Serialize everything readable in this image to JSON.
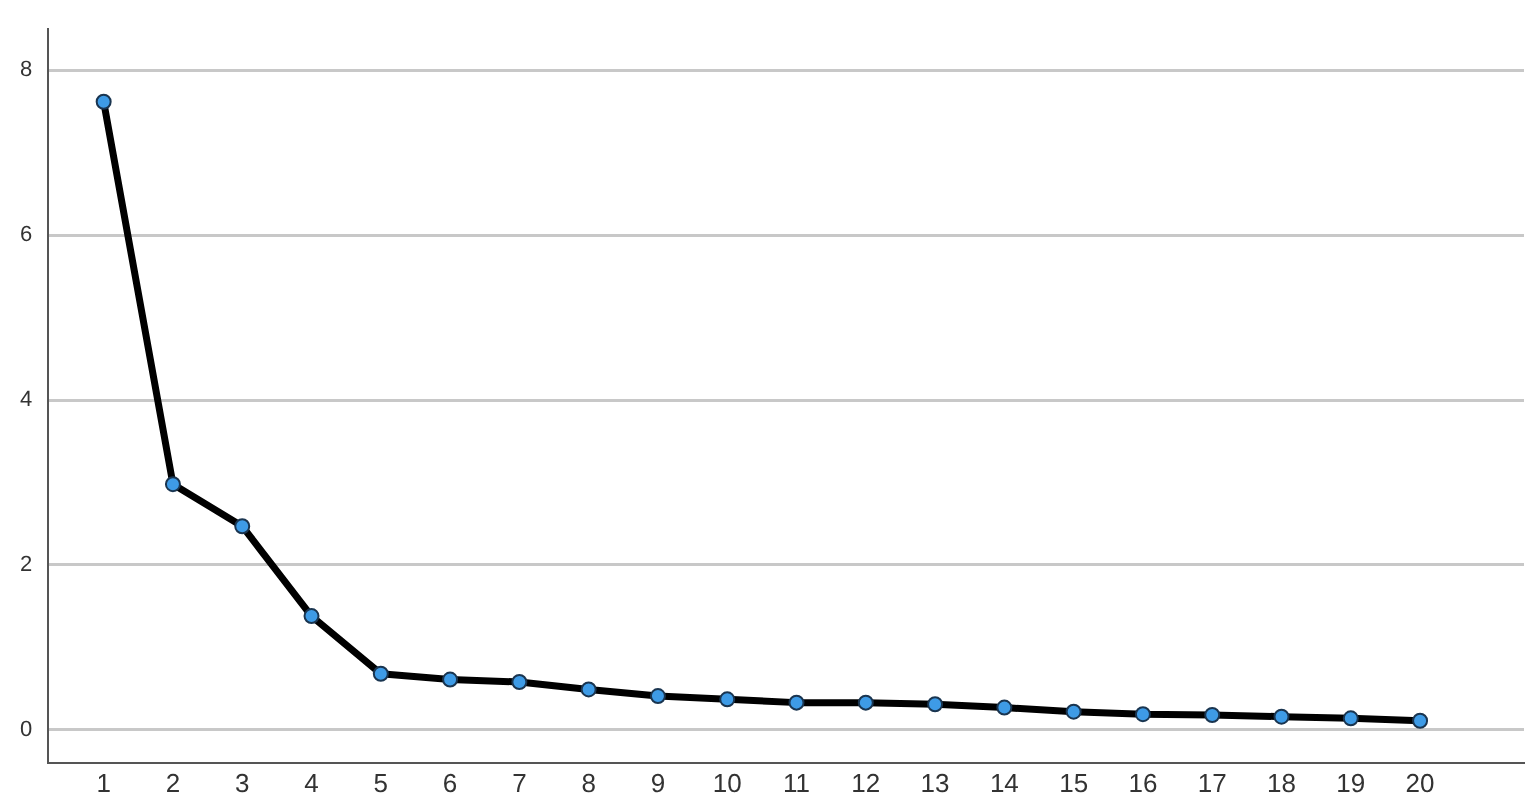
{
  "chart_data": {
    "type": "line",
    "x": [
      1,
      2,
      3,
      4,
      5,
      6,
      7,
      8,
      9,
      10,
      11,
      12,
      13,
      14,
      15,
      16,
      17,
      18,
      19,
      20
    ],
    "series": [
      {
        "color": "#000000",
        "values": [
          7.62,
          2.98,
          2.47,
          1.38,
          0.68,
          0.61,
          0.58,
          0.49,
          0.41,
          0.37,
          0.33,
          0.33,
          0.31,
          0.27,
          0.22,
          0.19,
          0.18,
          0.16,
          0.14,
          0.11
        ]
      }
    ],
    "xlim": [
      0.2,
      21.5
    ],
    "xticks": [
      1,
      2,
      3,
      4,
      5,
      6,
      7,
      8,
      9,
      10,
      11,
      12,
      13,
      14,
      15,
      16,
      17,
      18,
      19,
      20
    ],
    "ylim": [
      -0.4,
      8.5
    ],
    "yticks": [
      0,
      2,
      4,
      6,
      8
    ],
    "grid": "y",
    "marker": "circle",
    "line_style": "solid",
    "legend": false
  }
}
